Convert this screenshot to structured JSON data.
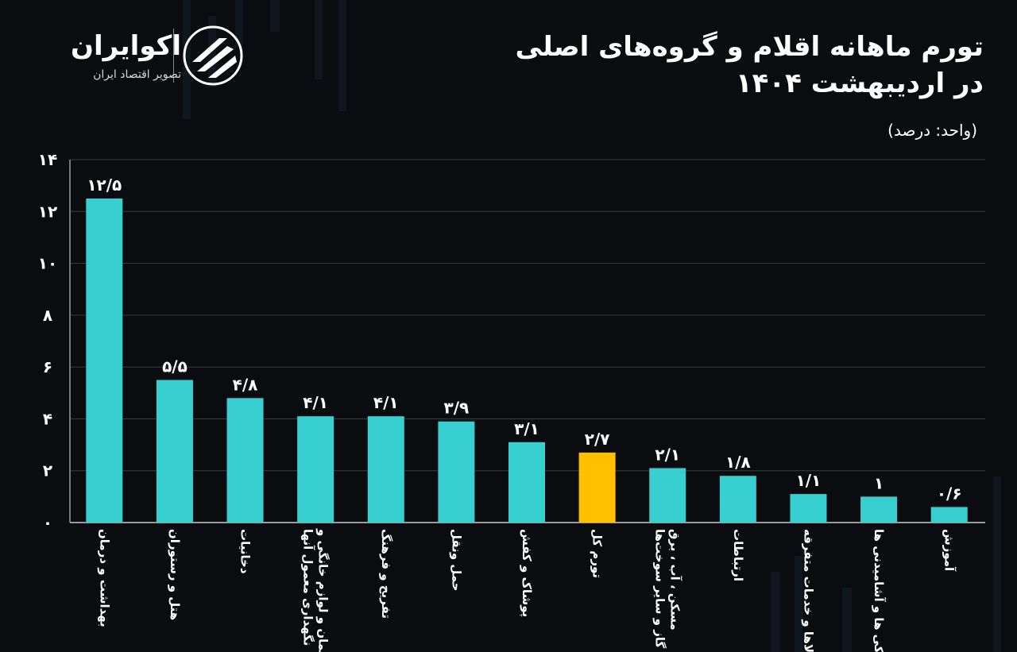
{
  "brand": {
    "name": "اکوایران",
    "tagline": "تصویر اقتصاد ایران"
  },
  "title": {
    "line1": "تورم ماهانه اقلام و گروه‌های اصلی",
    "line2": "در اردیبهشت ۱۴۰۴"
  },
  "unit": "(واحد: درصد)",
  "colors": {
    "bar": "#37cfd0",
    "highlight": "#ffc000",
    "grid": "#3a3d42",
    "background": "#0a0c0f"
  },
  "chart_data": {
    "type": "bar",
    "ylim": [
      0,
      14
    ],
    "yticks": [
      0,
      2,
      4,
      6,
      8,
      10,
      12,
      14
    ],
    "ytick_labels": [
      "۰",
      "۲",
      "۴",
      "۶",
      "۸",
      "۱۰",
      "۱۲",
      "۱۴"
    ],
    "categories": [
      [
        "بهداشت و درمان"
      ],
      [
        "هتل و رستوران"
      ],
      [
        "دخانیات"
      ],
      [
        "مبلمان و لوازم خانگی و",
        "نگهداری معمول آنها"
      ],
      [
        "تفریح و فرهنگ"
      ],
      [
        "حمل ونقل"
      ],
      [
        "پوشاک و کفش"
      ],
      [
        "تورم کل"
      ],
      [
        "مسکن ، آب ، برق",
        "، گاز و سایر سوخت‌ها"
      ],
      [
        "ارتباطات"
      ],
      [
        "کالاها و خدمات متفرقه"
      ],
      [
        "خوراکی ها و آشامیدنی ها"
      ],
      [
        "آموزش"
      ]
    ],
    "values": [
      12.5,
      5.5,
      4.8,
      4.1,
      4.1,
      3.9,
      3.1,
      2.7,
      2.1,
      1.8,
      1.1,
      1,
      0.6
    ],
    "value_labels": [
      "۱۲/۵",
      "۵/۵",
      "۴/۸",
      "۴/۱",
      "۴/۱",
      "۳/۹",
      "۳/۱",
      "۲/۷",
      "۲/۱",
      "۱/۸",
      "۱/۱",
      "۱",
      "۰/۶"
    ],
    "highlight_index": 7,
    "grid": true,
    "xlabel": "",
    "ylabel": ""
  }
}
